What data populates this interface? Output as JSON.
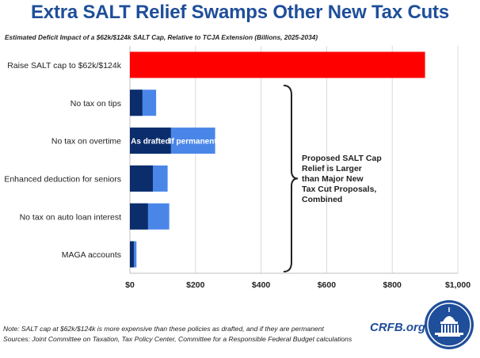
{
  "title": "Extra SALT Relief Swamps Other New Tax Cuts",
  "subtitle": "Estimated Deficit Impact of a $62k/$124k SALT Cap, Relative to TCJA Extension (Billions, 2025-2034)",
  "chart_data": {
    "type": "bar",
    "orientation": "horizontal",
    "stacked": true,
    "categories": [
      "Raise SALT cap to $62k/$124k",
      "No tax on tips",
      "No tax on overtime",
      "Enhanced deduction for seniors",
      "No tax on auto loan interest",
      "MAGA accounts"
    ],
    "series": [
      {
        "name": "As drafted",
        "values": [
          null,
          38,
          125,
          70,
          55,
          12
        ],
        "color": "#0b2d6b"
      },
      {
        "name": "If permanent",
        "values": [
          null,
          80,
          260,
          115,
          120,
          20
        ],
        "color": "#4a86e8"
      },
      {
        "name": "SALT cap",
        "values": [
          900,
          null,
          null,
          null,
          null,
          null
        ],
        "color": "#ff0000"
      }
    ],
    "bar_labels": {
      "as_drafted": "As drafted",
      "if_permanent": "If permanent"
    },
    "xlim": [
      0,
      1000
    ],
    "xticks": [
      0,
      200,
      400,
      600,
      800,
      1000
    ],
    "xtick_labels": [
      "$0",
      "$200",
      "$400",
      "$600",
      "$800",
      "$1,000"
    ],
    "grid": true,
    "annotation": [
      "Proposed SALT Cap",
      "Relief is Larger",
      "than Major New",
      "Tax Cut Proposals,",
      "Combined"
    ]
  },
  "notes": {
    "note": "Note: SALT cap at $62k/$124k is more expensive than these policies as drafted, and if they are permanent",
    "sources": "Sources: Joint Committee on Taxation, Tax Policy Center, Committee for a Responsible Federal Budget calculations"
  },
  "brand": "CRFB.org"
}
